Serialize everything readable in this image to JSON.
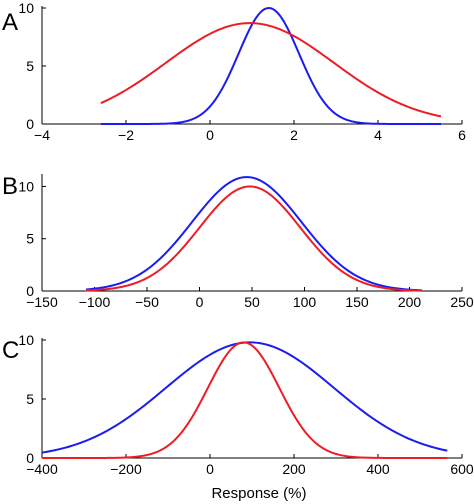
{
  "colors": {
    "blue": "#1c1cf0",
    "red": "#ee1c24",
    "axis": "#000000"
  },
  "figure": {
    "xlabel": "Response (%)"
  },
  "chart_data": [
    {
      "type": "line",
      "panel_label": "A",
      "xlim": [
        -4,
        6
      ],
      "ylim": [
        0,
        10
      ],
      "xticks": [
        -4,
        -2,
        0,
        2,
        4,
        6
      ],
      "yticks": [
        0,
        5,
        10
      ],
      "xtick_labels": [
        "−4",
        "−2",
        "0",
        "2",
        "4",
        "6"
      ],
      "ytick_labels": [
        "0",
        "5",
        "10"
      ],
      "xlabel": "",
      "ylabel": "",
      "series": [
        {
          "color": "blue",
          "gaussian": {
            "peak": 10.0,
            "mean": 1.4,
            "sd": 0.72
          },
          "x_range": [
            -2.6,
            5.5
          ]
        },
        {
          "color": "red",
          "gaussian": {
            "peak": 8.7,
            "mean": 0.95,
            "sd": 2.0
          },
          "x_range": [
            -2.6,
            5.5
          ]
        }
      ]
    },
    {
      "type": "line",
      "panel_label": "B",
      "xlim": [
        -150,
        250
      ],
      "ylim": [
        0,
        11
      ],
      "xticks": [
        -150,
        -100,
        -50,
        0,
        50,
        100,
        150,
        200,
        250
      ],
      "yticks": [
        0,
        5,
        10
      ],
      "xtick_labels": [
        "−150",
        "−100",
        "−50",
        "0",
        "50",
        "100",
        "150",
        "200",
        "250"
      ],
      "ytick_labels": [
        "0",
        "5",
        "10"
      ],
      "xlabel": "",
      "ylabel": "",
      "series": [
        {
          "color": "blue",
          "gaussian": {
            "peak": 10.9,
            "mean": 45,
            "sd": 52
          },
          "x_range": [
            -108,
            212
          ]
        },
        {
          "color": "red",
          "gaussian": {
            "peak": 10.0,
            "mean": 48,
            "sd": 48
          },
          "x_range": [
            -108,
            212
          ]
        }
      ]
    },
    {
      "type": "line",
      "panel_label": "C",
      "xlim": [
        -400,
        600
      ],
      "ylim": [
        0,
        10
      ],
      "xticks": [
        -400,
        -200,
        0,
        200,
        400,
        600
      ],
      "yticks": [
        0,
        5,
        10
      ],
      "xtick_labels": [
        "−400",
        "−200",
        "0",
        "200",
        "400",
        "600"
      ],
      "ytick_labels": [
        "0",
        "5",
        "10"
      ],
      "xlabel": "",
      "ylabel": "",
      "series": [
        {
          "color": "blue",
          "gaussian": {
            "peak": 9.8,
            "mean": 95,
            "sd": 200
          },
          "x_range": [
            -400,
            565
          ]
        },
        {
          "color": "red",
          "gaussian": {
            "peak": 9.8,
            "mean": 80,
            "sd": 85
          },
          "x_range": [
            -400,
            565
          ]
        }
      ]
    }
  ]
}
